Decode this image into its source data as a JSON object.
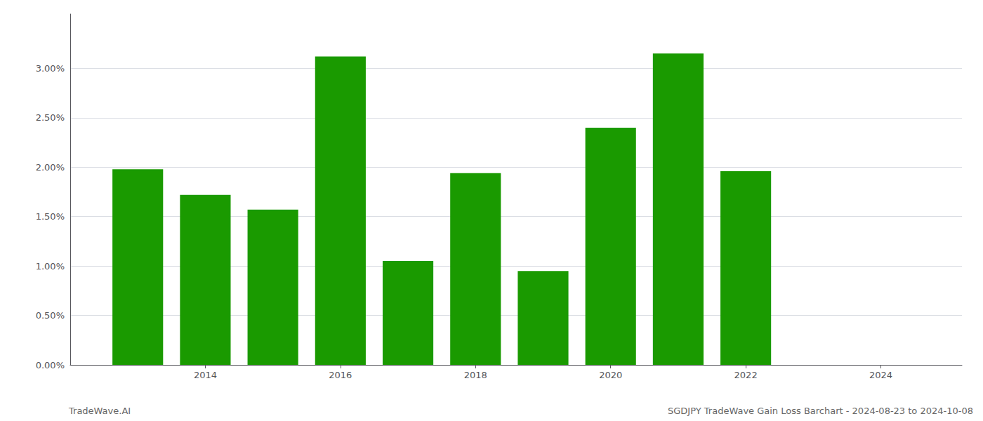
{
  "chart_data": {
    "type": "bar",
    "x": [
      2013,
      2014,
      2015,
      2016,
      2017,
      2018,
      2019,
      2020,
      2021,
      2022
    ],
    "values": [
      0.0198,
      0.0172,
      0.0157,
      0.0312,
      0.0105,
      0.0194,
      0.0095,
      0.024,
      0.0315,
      0.0196
    ],
    "color": "#1a9a00",
    "xlim": [
      2012.0,
      2025.2
    ],
    "xticks": [
      2014,
      2016,
      2018,
      2020,
      2022,
      2024
    ],
    "ylim": [
      0,
      0.0355
    ],
    "yticks": [
      {
        "value": 0.0,
        "label": "0.00%"
      },
      {
        "value": 0.005,
        "label": "0.50%"
      },
      {
        "value": 0.01,
        "label": "1.00%"
      },
      {
        "value": 0.015,
        "label": "1.50%"
      },
      {
        "value": 0.02,
        "label": "2.00%"
      },
      {
        "value": 0.025,
        "label": "2.50%"
      },
      {
        "value": 0.03,
        "label": "3.00%"
      }
    ],
    "grid": "y",
    "annotations": [
      "TradeWave.AI",
      "SGDJPY TradeWave Gain Loss Barchart - 2024-08-23 to 2024-10-08"
    ]
  }
}
